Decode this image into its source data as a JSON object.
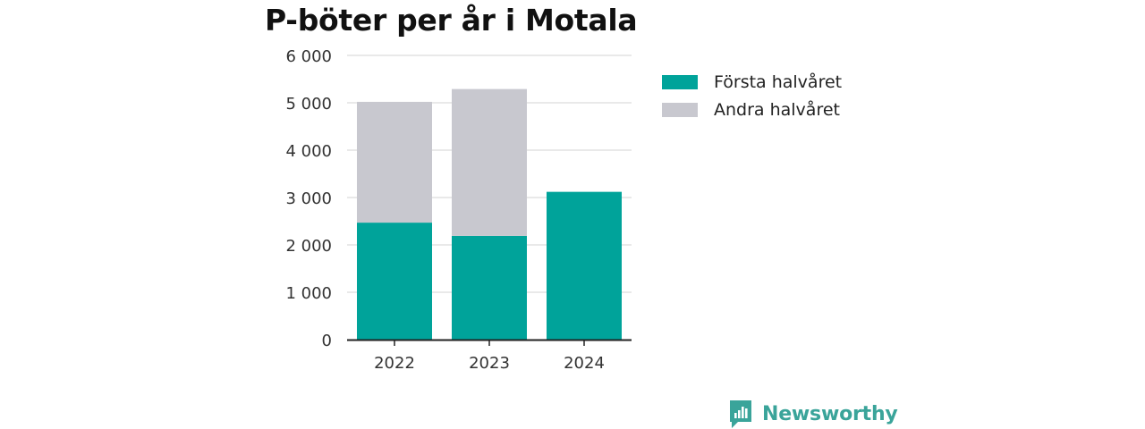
{
  "chart_data": {
    "type": "bar",
    "stacked": true,
    "title": "P-böter per år i Motala",
    "categories": [
      "2022",
      "2023",
      "2024"
    ],
    "series": [
      {
        "name": "Första halvåret",
        "values": [
          2470,
          2190,
          3120
        ],
        "color": "#00a39a"
      },
      {
        "name": "Andra halvåret",
        "values": [
          2550,
          3100,
          0
        ],
        "color": "#c8c8cf"
      }
    ],
    "ylim": [
      0,
      6000
    ],
    "yticks": [
      0,
      1000,
      2000,
      3000,
      4000,
      5000,
      6000
    ],
    "ytick_labels": [
      "0",
      "1 000",
      "2 000",
      "3 000",
      "4 000",
      "5 000",
      "6 000"
    ],
    "grid": true,
    "legend_position": "right",
    "xlabel": "",
    "ylabel": ""
  },
  "brand": {
    "label": "Newsworthy",
    "icon": "newsworthy-logo-icon",
    "color": "#3aa49a"
  }
}
